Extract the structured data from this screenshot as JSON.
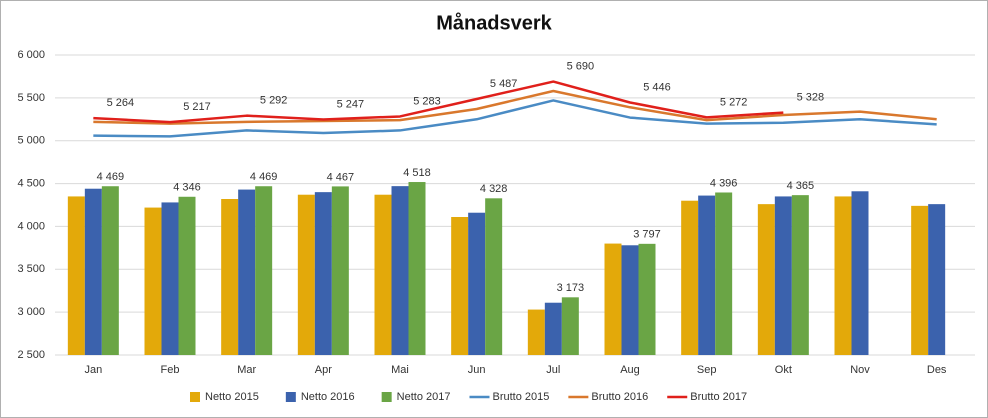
{
  "chart_data": {
    "type": "bar",
    "title": "Månadsverk",
    "categories": [
      "Jan",
      "Feb",
      "Mar",
      "Apr",
      "Mai",
      "Jun",
      "Jul",
      "Aug",
      "Sep",
      "Okt",
      "Nov",
      "Des"
    ],
    "ylim": [
      2500,
      6000
    ],
    "yticks": [
      {
        "value": 2500,
        "label": "2 500"
      },
      {
        "value": 3000,
        "label": "3 000"
      },
      {
        "value": 3500,
        "label": "3 500"
      },
      {
        "value": 4000,
        "label": "4 000"
      },
      {
        "value": 4500,
        "label": "4 500"
      },
      {
        "value": 5000,
        "label": "5 000"
      },
      {
        "value": 5500,
        "label": "5 500"
      },
      {
        "value": 6000,
        "label": "6 000"
      }
    ],
    "grid": true,
    "legend": "bottom",
    "series": [
      {
        "name": "Netto 2015",
        "type": "bar",
        "color": "#e3a90a",
        "values": [
          4350,
          4220,
          4320,
          4370,
          4370,
          4110,
          3030,
          3800,
          4300,
          4260,
          4350,
          4240
        ]
      },
      {
        "name": "Netto 2016",
        "type": "bar",
        "color": "#3b62ad",
        "values": [
          4440,
          4280,
          4430,
          4400,
          4470,
          4160,
          3110,
          3780,
          4360,
          4350,
          4410,
          4260
        ]
      },
      {
        "name": "Netto 2017",
        "type": "bar",
        "color": "#6aa545",
        "values": [
          4469,
          4346,
          4469,
          4467,
          4518,
          4328,
          3173,
          3797,
          4396,
          4365,
          null,
          null
        ],
        "value_labels": [
          "4 469",
          "4 346",
          "4 469",
          "4 467",
          "4 518",
          "4 328",
          "3 173",
          "3 797",
          "4 396",
          "4 365",
          null,
          null
        ]
      },
      {
        "name": "Brutto 2015",
        "type": "line",
        "color": "#4a8bc4",
        "values": [
          5060,
          5050,
          5120,
          5090,
          5120,
          5250,
          5470,
          5270,
          5200,
          5210,
          5250,
          5190
        ]
      },
      {
        "name": "Brutto 2016",
        "type": "line",
        "color": "#d9782d",
        "values": [
          5220,
          5200,
          5220,
          5230,
          5240,
          5370,
          5580,
          5390,
          5240,
          5300,
          5340,
          5250
        ]
      },
      {
        "name": "Brutto 2017",
        "type": "line",
        "color": "#e0201b",
        "values": [
          5264,
          5217,
          5292,
          5247,
          5283,
          5487,
          5690,
          5446,
          5272,
          5328,
          null,
          null
        ],
        "value_labels": [
          "5 264",
          "5 217",
          "5 292",
          "5 247",
          "5 283",
          "5 487",
          "5 690",
          "5 446",
          "5 272",
          "5 328",
          null,
          null
        ]
      }
    ]
  }
}
